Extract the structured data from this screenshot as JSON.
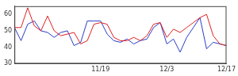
{
  "chart_data": {
    "type": "line",
    "categories": [
      null,
      null,
      null,
      null,
      null,
      null,
      null,
      null,
      null,
      null,
      null,
      null,
      null,
      "11/19",
      null,
      null,
      null,
      null,
      null,
      null,
      null,
      null,
      null,
      "12/3",
      null,
      null,
      null,
      null,
      null,
      null,
      null,
      null,
      "12/17"
    ],
    "series": [
      {
        "color": "#e02020",
        "values": [
          52,
          52,
          64,
          53,
          50,
          59,
          50,
          47,
          48,
          49,
          42,
          44,
          54,
          55,
          54,
          46,
          44,
          44,
          46,
          44,
          47,
          54,
          55,
          46,
          51,
          49,
          52,
          55,
          58,
          60,
          47,
          42,
          41
        ]
      },
      {
        "color": "#2a3cc8",
        "values": [
          52,
          44,
          54,
          56,
          50,
          49,
          46,
          49,
          50,
          41,
          43,
          56,
          56,
          56,
          48,
          44,
          43,
          45,
          42,
          44,
          45,
          52,
          55,
          42,
          45,
          37,
          46,
          52,
          58,
          39,
          43,
          42,
          41
        ]
      }
    ],
    "ylim": [
      30,
      65
    ],
    "yticks": [
      30,
      40,
      50,
      60
    ],
    "grid": false
  }
}
